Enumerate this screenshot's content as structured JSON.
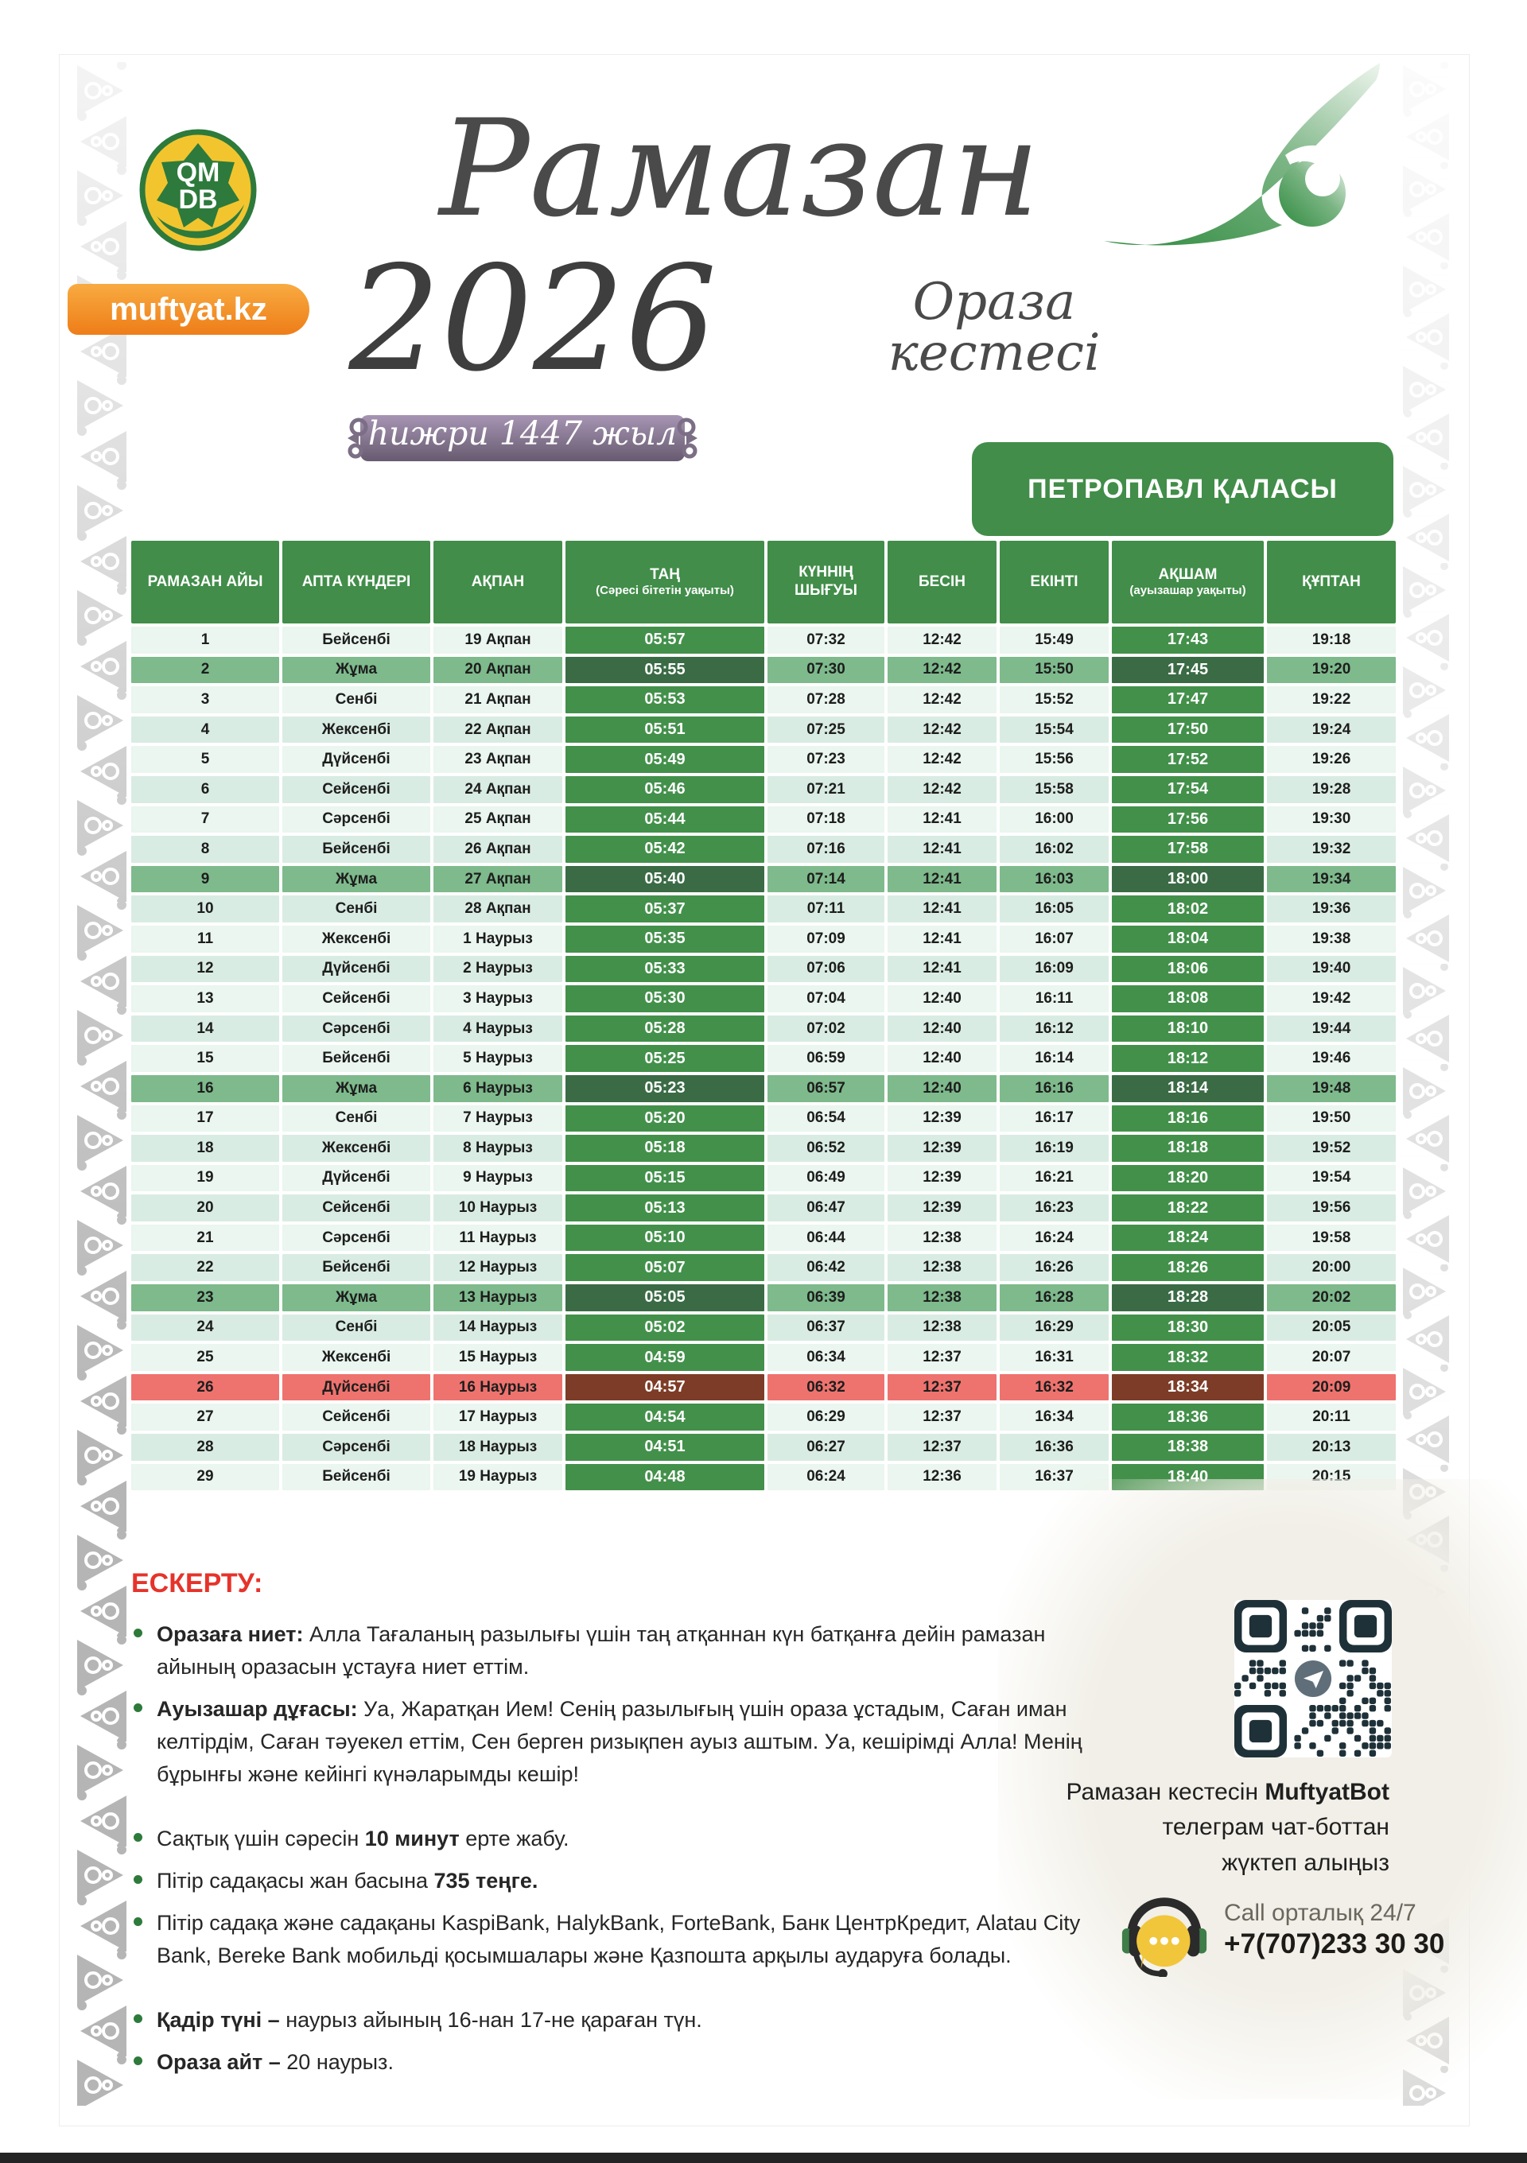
{
  "branding": {
    "logo_star_top": "QM",
    "logo_star_bottom": "DB",
    "site_badge": "muftyat.kz"
  },
  "header": {
    "title_script": "Рамазан",
    "year": "2026",
    "subtitle_script": "Ораза кестесі",
    "hijri_banner": "һижри 1447 жыл",
    "city_box": "ПЕТРОПАВЛ ҚАЛАСЫ"
  },
  "table": {
    "columns": [
      {
        "label": "РАМАЗАН АЙЫ",
        "sub": ""
      },
      {
        "label": "АПТА КҮНДЕРІ",
        "sub": ""
      },
      {
        "label": "АҚПАН",
        "sub": ""
      },
      {
        "label": "ТАҢ",
        "sub": "(Сәресі бітетін уақыты)"
      },
      {
        "label": "КҮННІҢ ШЫҒУЫ",
        "sub": ""
      },
      {
        "label": "БЕСІН",
        "sub": ""
      },
      {
        "label": "ЕКІНТІ",
        "sub": ""
      },
      {
        "label": "АҚШАМ",
        "sub": "(ауызашар уақыты)"
      },
      {
        "label": "ҚҰПТАН",
        "sub": ""
      }
    ],
    "rows": [
      {
        "day": "1",
        "weekday": "Бейсенбі",
        "date": "19 Ақпан",
        "tan": "05:57",
        "sunrise": "07:32",
        "besin": "12:42",
        "ekinti": "15:49",
        "aksham": "17:43",
        "quptan": "19:18",
        "highlight": ""
      },
      {
        "day": "2",
        "weekday": "Жұма",
        "date": "20 Ақпан",
        "tan": "05:55",
        "sunrise": "07:30",
        "besin": "12:42",
        "ekinti": "15:50",
        "aksham": "17:45",
        "quptan": "19:20",
        "highlight": "friday"
      },
      {
        "day": "3",
        "weekday": "Сенбі",
        "date": "21 Ақпан",
        "tan": "05:53",
        "sunrise": "07:28",
        "besin": "12:42",
        "ekinti": "15:52",
        "aksham": "17:47",
        "quptan": "19:22",
        "highlight": ""
      },
      {
        "day": "4",
        "weekday": "Жексенбі",
        "date": "22 Ақпан",
        "tan": "05:51",
        "sunrise": "07:25",
        "besin": "12:42",
        "ekinti": "15:54",
        "aksham": "17:50",
        "quptan": "19:24",
        "highlight": ""
      },
      {
        "day": "5",
        "weekday": "Дүйсенбі",
        "date": "23 Ақпан",
        "tan": "05:49",
        "sunrise": "07:23",
        "besin": "12:42",
        "ekinti": "15:56",
        "aksham": "17:52",
        "quptan": "19:26",
        "highlight": ""
      },
      {
        "day": "6",
        "weekday": "Сейсенбі",
        "date": "24 Ақпан",
        "tan": "05:46",
        "sunrise": "07:21",
        "besin": "12:42",
        "ekinti": "15:58",
        "aksham": "17:54",
        "quptan": "19:28",
        "highlight": ""
      },
      {
        "day": "7",
        "weekday": "Сәрсенбі",
        "date": "25 Ақпан",
        "tan": "05:44",
        "sunrise": "07:18",
        "besin": "12:41",
        "ekinti": "16:00",
        "aksham": "17:56",
        "quptan": "19:30",
        "highlight": ""
      },
      {
        "day": "8",
        "weekday": "Бейсенбі",
        "date": "26 Ақпан",
        "tan": "05:42",
        "sunrise": "07:16",
        "besin": "12:41",
        "ekinti": "16:02",
        "aksham": "17:58",
        "quptan": "19:32",
        "highlight": ""
      },
      {
        "day": "9",
        "weekday": "Жұма",
        "date": "27 Ақпан",
        "tan": "05:40",
        "sunrise": "07:14",
        "besin": "12:41",
        "ekinti": "16:03",
        "aksham": "18:00",
        "quptan": "19:34",
        "highlight": "friday"
      },
      {
        "day": "10",
        "weekday": "Сенбі",
        "date": "28 Ақпан",
        "tan": "05:37",
        "sunrise": "07:11",
        "besin": "12:41",
        "ekinti": "16:05",
        "aksham": "18:02",
        "quptan": "19:36",
        "highlight": ""
      },
      {
        "day": "11",
        "weekday": "Жексенбі",
        "date": "1 Наурыз",
        "tan": "05:35",
        "sunrise": "07:09",
        "besin": "12:41",
        "ekinti": "16:07",
        "aksham": "18:04",
        "quptan": "19:38",
        "highlight": ""
      },
      {
        "day": "12",
        "weekday": "Дүйсенбі",
        "date": "2 Наурыз",
        "tan": "05:33",
        "sunrise": "07:06",
        "besin": "12:41",
        "ekinti": "16:09",
        "aksham": "18:06",
        "quptan": "19:40",
        "highlight": ""
      },
      {
        "day": "13",
        "weekday": "Сейсенбі",
        "date": "3 Наурыз",
        "tan": "05:30",
        "sunrise": "07:04",
        "besin": "12:40",
        "ekinti": "16:11",
        "aksham": "18:08",
        "quptan": "19:42",
        "highlight": ""
      },
      {
        "day": "14",
        "weekday": "Сәрсенбі",
        "date": "4 Наурыз",
        "tan": "05:28",
        "sunrise": "07:02",
        "besin": "12:40",
        "ekinti": "16:12",
        "aksham": "18:10",
        "quptan": "19:44",
        "highlight": ""
      },
      {
        "day": "15",
        "weekday": "Бейсенбі",
        "date": "5 Наурыз",
        "tan": "05:25",
        "sunrise": "06:59",
        "besin": "12:40",
        "ekinti": "16:14",
        "aksham": "18:12",
        "quptan": "19:46",
        "highlight": ""
      },
      {
        "day": "16",
        "weekday": "Жұма",
        "date": "6 Наурыз",
        "tan": "05:23",
        "sunrise": "06:57",
        "besin": "12:40",
        "ekinti": "16:16",
        "aksham": "18:14",
        "quptan": "19:48",
        "highlight": "friday"
      },
      {
        "day": "17",
        "weekday": "Сенбі",
        "date": "7 Наурыз",
        "tan": "05:20",
        "sunrise": "06:54",
        "besin": "12:39",
        "ekinti": "16:17",
        "aksham": "18:16",
        "quptan": "19:50",
        "highlight": ""
      },
      {
        "day": "18",
        "weekday": "Жексенбі",
        "date": "8 Наурыз",
        "tan": "05:18",
        "sunrise": "06:52",
        "besin": "12:39",
        "ekinti": "16:19",
        "aksham": "18:18",
        "quptan": "19:52",
        "highlight": ""
      },
      {
        "day": "19",
        "weekday": "Дүйсенбі",
        "date": "9 Наурыз",
        "tan": "05:15",
        "sunrise": "06:49",
        "besin": "12:39",
        "ekinti": "16:21",
        "aksham": "18:20",
        "quptan": "19:54",
        "highlight": ""
      },
      {
        "day": "20",
        "weekday": "Сейсенбі",
        "date": "10 Наурыз",
        "tan": "05:13",
        "sunrise": "06:47",
        "besin": "12:39",
        "ekinti": "16:23",
        "aksham": "18:22",
        "quptan": "19:56",
        "highlight": ""
      },
      {
        "day": "21",
        "weekday": "Сәрсенбі",
        "date": "11 Наурыз",
        "tan": "05:10",
        "sunrise": "06:44",
        "besin": "12:38",
        "ekinti": "16:24",
        "aksham": "18:24",
        "quptan": "19:58",
        "highlight": ""
      },
      {
        "day": "22",
        "weekday": "Бейсенбі",
        "date": "12 Наурыз",
        "tan": "05:07",
        "sunrise": "06:42",
        "besin": "12:38",
        "ekinti": "16:26",
        "aksham": "18:26",
        "quptan": "20:00",
        "highlight": ""
      },
      {
        "day": "23",
        "weekday": "Жұма",
        "date": "13 Наурыз",
        "tan": "05:05",
        "sunrise": "06:39",
        "besin": "12:38",
        "ekinti": "16:28",
        "aksham": "18:28",
        "quptan": "20:02",
        "highlight": "friday"
      },
      {
        "day": "24",
        "weekday": "Сенбі",
        "date": "14 Наурыз",
        "tan": "05:02",
        "sunrise": "06:37",
        "besin": "12:38",
        "ekinti": "16:29",
        "aksham": "18:30",
        "quptan": "20:05",
        "highlight": ""
      },
      {
        "day": "25",
        "weekday": "Жексенбі",
        "date": "15 Наурыз",
        "tan": "04:59",
        "sunrise": "06:34",
        "besin": "12:37",
        "ekinti": "16:31",
        "aksham": "18:32",
        "quptan": "20:07",
        "highlight": ""
      },
      {
        "day": "26",
        "weekday": "Дүйсенбі",
        "date": "16 Наурыз",
        "tan": "04:57",
        "sunrise": "06:32",
        "besin": "12:37",
        "ekinti": "16:32",
        "aksham": "18:34",
        "quptan": "20:09",
        "highlight": "qadir"
      },
      {
        "day": "27",
        "weekday": "Сейсенбі",
        "date": "17 Наурыз",
        "tan": "04:54",
        "sunrise": "06:29",
        "besin": "12:37",
        "ekinti": "16:34",
        "aksham": "18:36",
        "quptan": "20:11",
        "highlight": ""
      },
      {
        "day": "28",
        "weekday": "Сәрсенбі",
        "date": "18 Наурыз",
        "tan": "04:51",
        "sunrise": "06:27",
        "besin": "12:37",
        "ekinti": "16:36",
        "aksham": "18:38",
        "quptan": "20:13",
        "highlight": ""
      },
      {
        "day": "29",
        "weekday": "Бейсенбі",
        "date": "19 Наурыз",
        "tan": "04:48",
        "sunrise": "06:24",
        "besin": "12:36",
        "ekinti": "16:37",
        "aksham": "18:40",
        "quptan": "20:15",
        "highlight": ""
      }
    ]
  },
  "notes": {
    "heading": "ЕСКЕРТУ:",
    "groups": [
      [
        [
          {
            "t": "Оразаға ниет:",
            "b": true
          },
          {
            "t": " Алла Тағаланың разылығы үшін таң атқаннан күн батқанға дейін рамазан айының оразасын ұстауға ниет еттім.",
            "b": false
          }
        ],
        [
          {
            "t": "Ауызашар дұғасы:",
            "b": true
          },
          {
            "t": " Уа, Жаратқан Ием! Сенің разылығың үшін ораза ұстадым, Саған иман келтірдім, Саған тәуекел еттім, Сен берген ризықпен ауыз аштым. Уа, кешірімді Алла! Менің бұрынғы және кейінгі күнәларымды кешір!",
            "b": false
          }
        ]
      ],
      [
        [
          {
            "t": "Сақтық үшін сәресін ",
            "b": false
          },
          {
            "t": "10 минут",
            "b": true
          },
          {
            "t": " ерте жабу.",
            "b": false
          }
        ],
        [
          {
            "t": "Пітір садақасы жан басына ",
            "b": false
          },
          {
            "t": "735 теңге.",
            "b": true
          }
        ],
        [
          {
            "t": "Пітір садақа және садақаны KaspiBank, HalykBank, ForteBank, Банк ЦентрКредит, Alatau City Bank, Bereke Bank мобильді қосымшалары және Қазпошта арқылы аударуға болады.",
            "b": false
          }
        ]
      ],
      [
        [
          {
            "t": "Қадір түні –",
            "b": true
          },
          {
            "t": " наурыз айының 16-нан 17-не қараған түн.",
            "b": false
          }
        ],
        [
          {
            "t": "Ораза айт –",
            "b": true
          },
          {
            "t": " 20 наурыз.",
            "b": false
          }
        ]
      ]
    ]
  },
  "footer": {
    "qr_caption_lines": [
      [
        {
          "t": "Рамазан кестесін ",
          "b": false
        },
        {
          "t": "MuftyatBot",
          "b": true
        }
      ],
      [
        {
          "t": "телеграм чат-боттан",
          "b": false
        }
      ],
      [
        {
          "t": "жүктеп алыңыз",
          "b": false
        }
      ]
    ],
    "call_center_label": "Call орталық 24/7",
    "call_center_phone": "+7(707)233 30 30"
  },
  "colors": {
    "header_green": "#418d49",
    "cell_green": "#43904b",
    "friday_row": "#7eba8c",
    "friday_dark": "#3a6b45",
    "row_light": "#eaf6ef",
    "row_alt": "#d9ece3",
    "qadir_row": "#ee736e",
    "qadir_dark": "#7d3c27",
    "badge_orange": "#f08a21",
    "note_red": "#e6332a",
    "qr_dark": "#1f3138",
    "banner_purple": "#8a7b95",
    "script_gray": "#4a4a4a"
  }
}
